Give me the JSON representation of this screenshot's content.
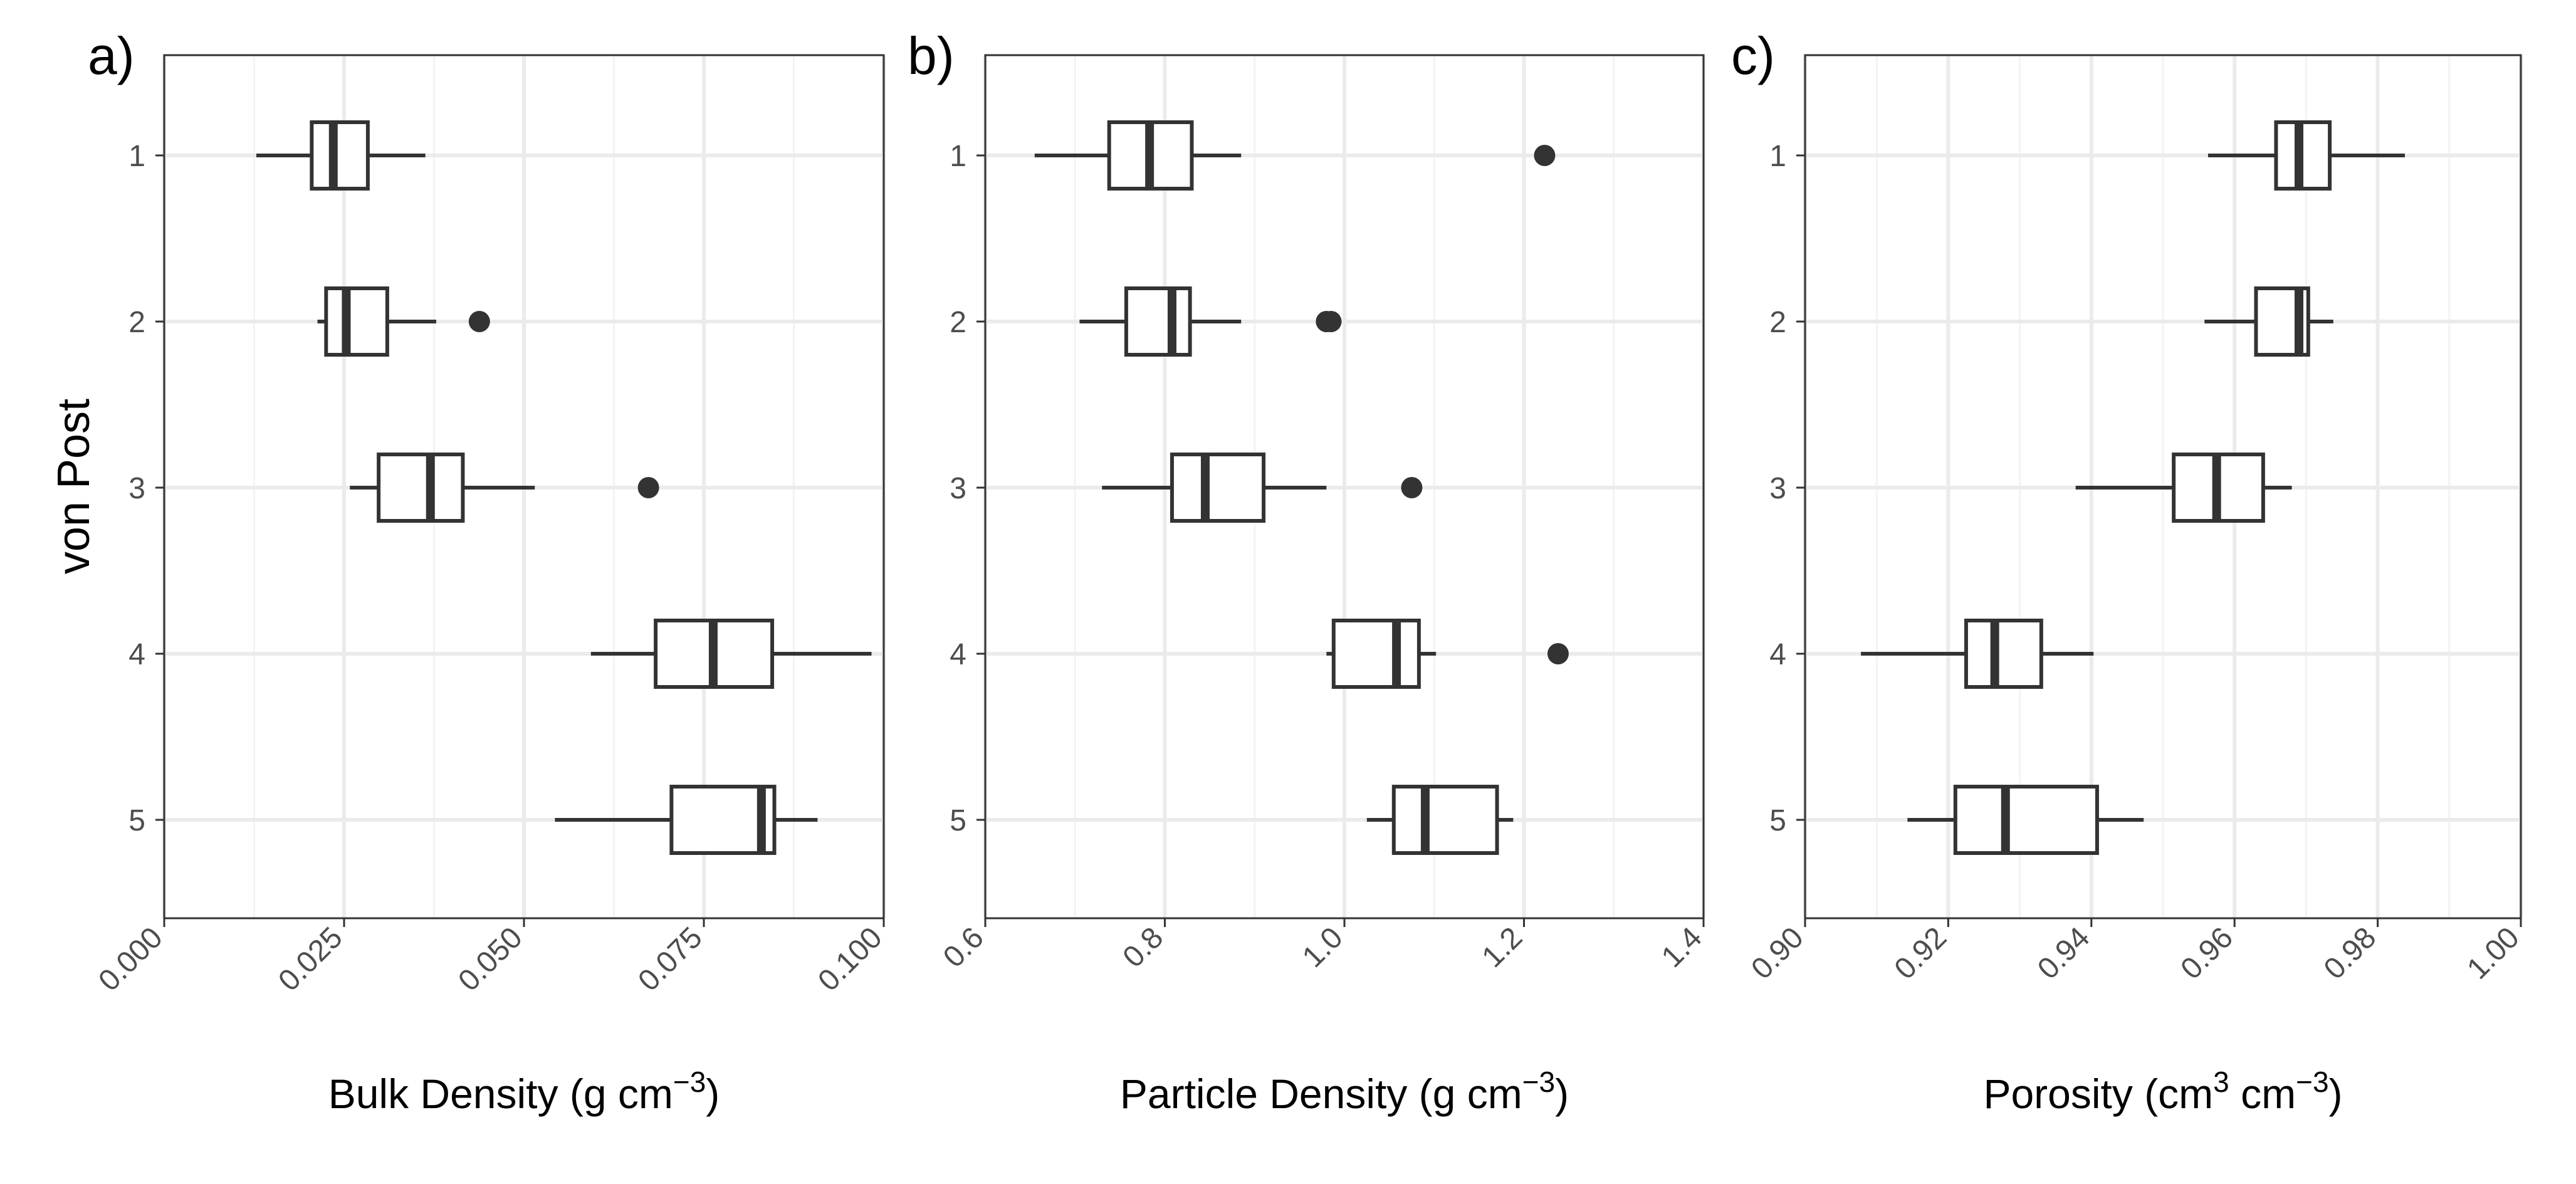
{
  "y_axis_label": "von Post",
  "chart_data": [
    {
      "type": "boxplot",
      "panel_label": "a)",
      "xlabel_main": "Bulk Density (g cm",
      "xlabel_sup": "−3",
      "xlabel_close": ")",
      "ylabel": "von Post",
      "categories": [
        "1",
        "2",
        "3",
        "4",
        "5"
      ],
      "xlim": [
        0,
        0.1
      ],
      "xticks": [
        0,
        0.025,
        0.05,
        0.075,
        0.1
      ],
      "xtick_labels": [
        "0.000",
        "0.025",
        "0.050",
        "0.075",
        "0.100"
      ],
      "x_minor_ticks": [
        0.0125,
        0.0375,
        0.0625,
        0.0875
      ],
      "grid": true,
      "boxes": [
        {
          "category": "1",
          "whisker_low": 0.0128,
          "q1": 0.0205,
          "median": 0.0235,
          "q3": 0.0283,
          "whisker_high": 0.0363,
          "outliers": []
        },
        {
          "category": "2",
          "whisker_low": 0.0213,
          "q1": 0.0225,
          "median": 0.0253,
          "q3": 0.031,
          "whisker_high": 0.0378,
          "outliers": [
            0.0438
          ]
        },
        {
          "category": "3",
          "whisker_low": 0.0258,
          "q1": 0.0298,
          "median": 0.037,
          "q3": 0.0415,
          "whisker_high": 0.0515,
          "outliers": [
            0.0673
          ]
        },
        {
          "category": "4",
          "whisker_low": 0.0593,
          "q1": 0.0683,
          "median": 0.0763,
          "q3": 0.0845,
          "whisker_high": 0.0983,
          "outliers": []
        },
        {
          "category": "5",
          "whisker_low": 0.0543,
          "q1": 0.0705,
          "median": 0.083,
          "q3": 0.0848,
          "whisker_high": 0.0908,
          "outliers": []
        }
      ]
    },
    {
      "type": "boxplot",
      "panel_label": "b)",
      "xlabel_main": "Particle Density (g cm",
      "xlabel_sup": "−3",
      "xlabel_close": ")",
      "ylabel": "",
      "categories": [
        "1",
        "2",
        "3",
        "4",
        "5"
      ],
      "xlim": [
        0.6,
        1.4
      ],
      "xticks": [
        0.6,
        0.8,
        1.0,
        1.2,
        1.4
      ],
      "xtick_labels": [
        "0.6",
        "0.8",
        "1.0",
        "1.2",
        "1.4"
      ],
      "x_minor_ticks": [
        0.7,
        0.9,
        1.1,
        1.3
      ],
      "grid": true,
      "boxes": [
        {
          "category": "1",
          "whisker_low": 0.655,
          "q1": 0.738,
          "median": 0.783,
          "q3": 0.83,
          "whisker_high": 0.885,
          "outliers": [
            1.223
          ]
        },
        {
          "category": "2",
          "whisker_low": 0.705,
          "q1": 0.757,
          "median": 0.808,
          "q3": 0.828,
          "whisker_high": 0.885,
          "outliers": [
            0.98,
            0.985
          ]
        },
        {
          "category": "3",
          "whisker_low": 0.73,
          "q1": 0.808,
          "median": 0.845,
          "q3": 0.91,
          "whisker_high": 0.98,
          "outliers": [
            1.075
          ]
        },
        {
          "category": "4",
          "whisker_low": 0.98,
          "q1": 0.988,
          "median": 1.058,
          "q3": 1.083,
          "whisker_high": 1.102,
          "outliers": [
            1.238
          ]
        },
        {
          "category": "5",
          "whisker_low": 1.025,
          "q1": 1.055,
          "median": 1.09,
          "q3": 1.17,
          "whisker_high": 1.188,
          "outliers": []
        }
      ]
    },
    {
      "type": "boxplot",
      "panel_label": "c)",
      "xlabel_main": "Porosity (cm",
      "xlabel_sup": "3",
      "xlabel_mid": " cm",
      "xlabel_sup2": "−3",
      "xlabel_close": ")",
      "ylabel": "",
      "categories": [
        "1",
        "2",
        "3",
        "4",
        "5"
      ],
      "xlim": [
        0.9,
        1.0
      ],
      "xticks": [
        0.9,
        0.92,
        0.94,
        0.96,
        0.98,
        1.0
      ],
      "xtick_labels": [
        "0.90",
        "0.92",
        "0.94",
        "0.96",
        "0.98",
        "1.00"
      ],
      "x_minor_ticks": [
        0.91,
        0.93,
        0.95,
        0.97,
        0.99
      ],
      "grid": true,
      "boxes": [
        {
          "category": "1",
          "whisker_low": 0.9563,
          "q1": 0.9658,
          "median": 0.969,
          "q3": 0.9733,
          "whisker_high": 0.9838,
          "outliers": []
        },
        {
          "category": "2",
          "whisker_low": 0.9558,
          "q1": 0.963,
          "median": 0.969,
          "q3": 0.9703,
          "whisker_high": 0.9738,
          "outliers": []
        },
        {
          "category": "3",
          "whisker_low": 0.9378,
          "q1": 0.9515,
          "median": 0.9575,
          "q3": 0.964,
          "whisker_high": 0.968,
          "outliers": []
        },
        {
          "category": "4",
          "whisker_low": 0.9078,
          "q1": 0.9225,
          "median": 0.9265,
          "q3": 0.933,
          "whisker_high": 0.9403,
          "outliers": []
        },
        {
          "category": "5",
          "whisker_low": 0.9143,
          "q1": 0.921,
          "median": 0.928,
          "q3": 0.9408,
          "whisker_high": 0.9473,
          "outliers": []
        }
      ]
    }
  ]
}
